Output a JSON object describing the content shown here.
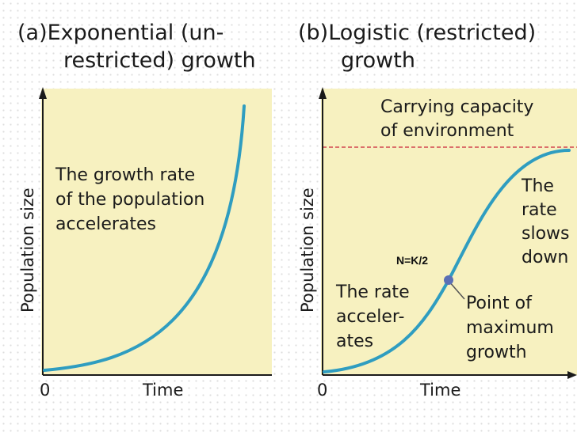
{
  "panel_a": {
    "title_line1": "(a)Exponential (un-",
    "title_line2": "restricted) growth",
    "annotation": [
      "The growth rate",
      "of the population",
      "accelerates"
    ],
    "y_axis_label": "Population size",
    "x_axis_label": "Time",
    "origin_label": "0"
  },
  "panel_b": {
    "title_line1": "(b)Logistic (restricted)",
    "title_line2": "growth",
    "carrying_capacity": [
      "Carrying capacity",
      "of environment"
    ],
    "rate_slows": [
      "The",
      "rate",
      "slows",
      "down"
    ],
    "rate_accelerates": [
      "The rate",
      "acceler-",
      "ates"
    ],
    "max_growth": [
      "Point of",
      "maximum",
      "growth"
    ],
    "nk_label": "N=K/2",
    "y_axis_label": "Population size",
    "x_axis_label": "Time",
    "origin_label": "0"
  },
  "colors": {
    "plot_bg": "#f7f1c0",
    "curve": "#2f9dc0",
    "carrying_line": "#d2454f",
    "point": "#5b6fb5",
    "axis": "#1a1a1a"
  }
}
